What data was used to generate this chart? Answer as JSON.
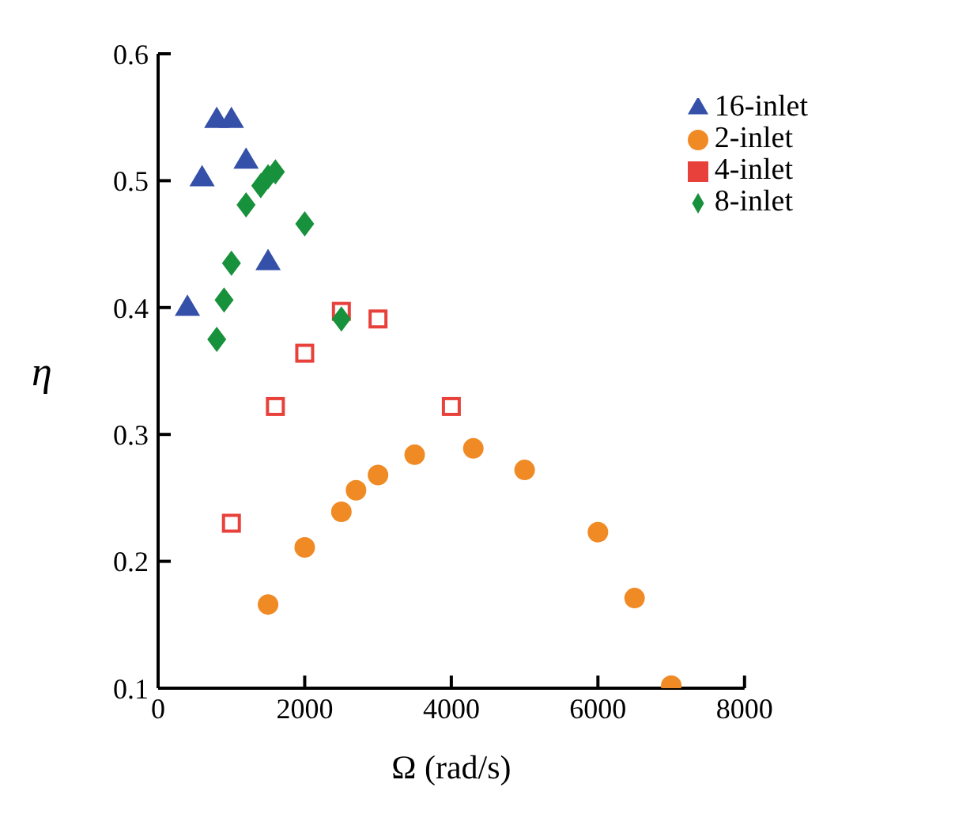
{
  "chart_data": {
    "type": "scatter",
    "xlabel": "Ω (rad/s)",
    "ylabel": "η",
    "xlim": [
      0,
      8000
    ],
    "xticks": [
      0,
      2000,
      4000,
      6000,
      8000
    ],
    "ylim": [
      0.1,
      0.6
    ],
    "yticks": [
      0.1,
      0.2,
      0.3,
      0.4,
      0.5,
      0.6
    ],
    "grid": false,
    "legend": "top right",
    "series": [
      {
        "name": "2-inlet",
        "color": "#f08a24",
        "marker": "circle",
        "x": [
          1500,
          2000,
          2500,
          2700,
          3000,
          3500,
          4300,
          5000,
          6000,
          6500,
          7000
        ],
        "values": [
          0.166,
          0.211,
          0.239,
          0.256,
          0.268,
          0.284,
          0.289,
          0.272,
          0.223,
          0.171,
          0.102
        ]
      },
      {
        "name": "4-inlet",
        "color": "#e8403a",
        "marker": "square",
        "x": [
          1000,
          1600,
          2000,
          2500,
          3000,
          4000
        ],
        "values": [
          0.23,
          0.322,
          0.364,
          0.397,
          0.391,
          0.322
        ]
      },
      {
        "name": "8-inlet",
        "color": "#18913c",
        "marker": "diamond",
        "x": [
          800,
          900,
          1000,
          1200,
          1400,
          1500,
          1600,
          2000,
          2500
        ],
        "values": [
          0.375,
          0.406,
          0.435,
          0.481,
          0.496,
          0.503,
          0.507,
          0.466,
          0.391
        ]
      },
      {
        "name": "16-inlet",
        "color": "#3550a8",
        "marker": "triangle",
        "x": [
          400,
          600,
          800,
          1000,
          1200,
          1500
        ],
        "values": [
          0.401,
          0.503,
          0.549,
          0.549,
          0.517,
          0.437
        ]
      }
    ]
  }
}
